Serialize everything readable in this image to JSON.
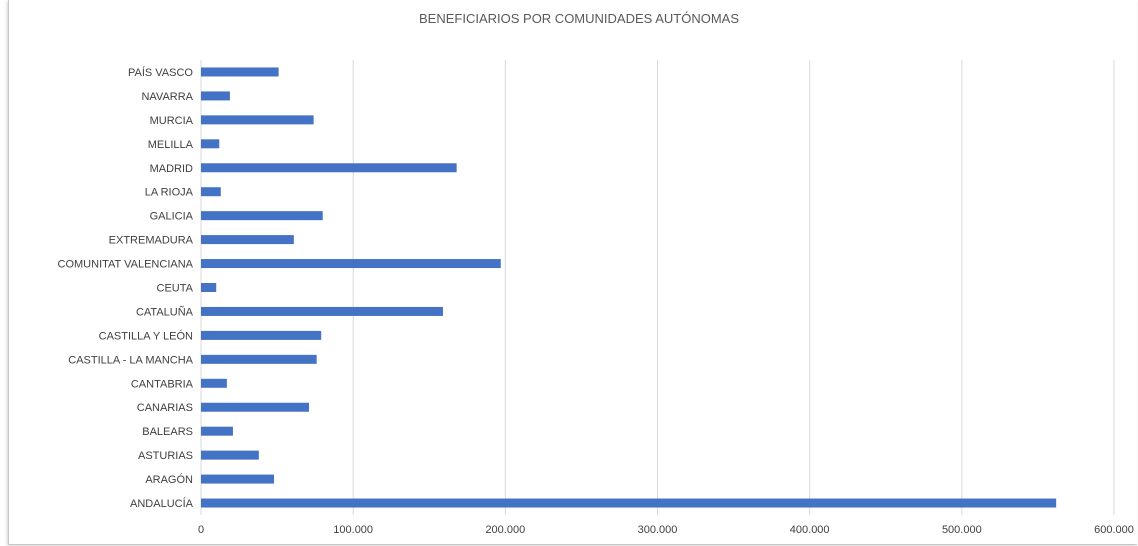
{
  "chart_data": {
    "type": "bar",
    "orientation": "horizontal",
    "title": "BENEFICIARIOS POR COMUNIDADES AUTÓNOMAS",
    "xlabel": "",
    "ylabel": "",
    "categories": [
      "ANDALUCÍA",
      "ARAGÓN",
      "ASTURIAS",
      "BALEARS",
      "CANARIAS",
      "CANTABRIA",
      "CASTILLA - LA MANCHA",
      "CASTILLA Y LEÓN",
      "CATALUÑA",
      "CEUTA",
      "COMUNITAT VALENCIANA",
      "EXTREMADURA",
      "GALICIA",
      "LA RIOJA",
      "MADRID",
      "MELILLA",
      "MURCIA",
      "NAVARRA",
      "PAÍS VASCO"
    ],
    "values": [
      562000,
      48000,
      38000,
      21000,
      71000,
      17000,
      76000,
      79000,
      159000,
      10000,
      197000,
      61000,
      80000,
      13000,
      168000,
      12000,
      74000,
      19000,
      51000
    ],
    "xlim": [
      0,
      600000
    ],
    "xticks": [
      "0",
      "100.000",
      "200.000",
      "300.000",
      "400.000",
      "500.000",
      "600.000"
    ],
    "grid": "vertical",
    "legend": "none",
    "bar_color": "#4472c4",
    "grid_color": "#d9d9d9"
  }
}
